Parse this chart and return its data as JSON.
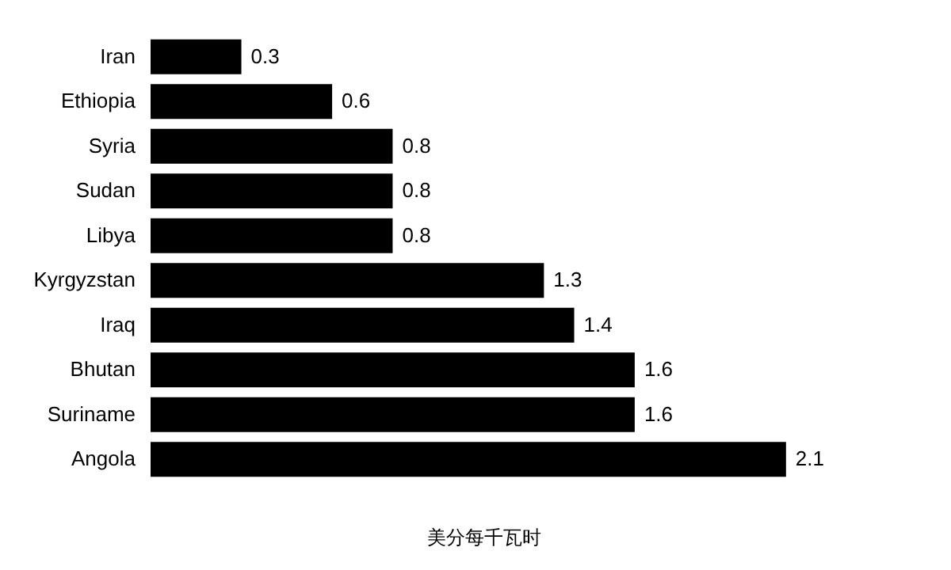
{
  "chart_data": {
    "type": "bar",
    "orientation": "horizontal",
    "xlabel": "美分每千瓦时",
    "categories": [
      "Iran",
      "Ethiopia",
      "Syria",
      "Sudan",
      "Libya",
      "Kyrgyzstan",
      "Iraq",
      "Bhutan",
      "Suriname",
      "Angola"
    ],
    "values": [
      0.3,
      0.6,
      0.8,
      0.8,
      0.8,
      1.3,
      1.4,
      1.6,
      1.6,
      2.1
    ],
    "color": "#000000",
    "data_labels": true,
    "grid": false
  }
}
